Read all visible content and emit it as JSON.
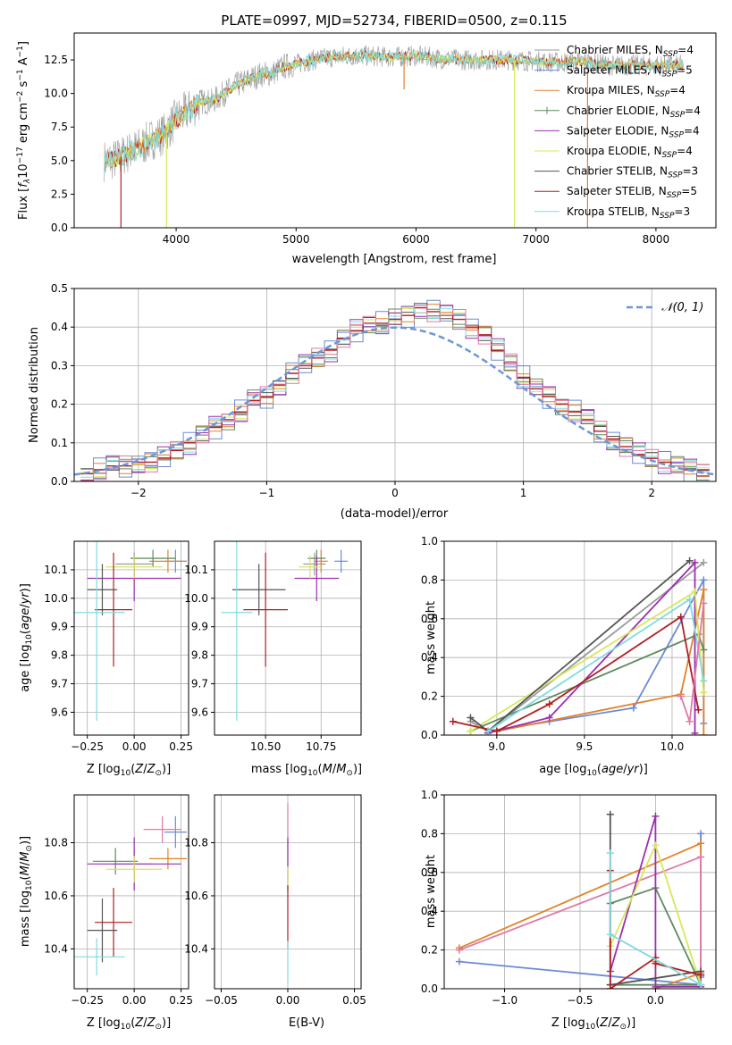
{
  "colors": {
    "Chabrier MILES": "#9b9b9b",
    "Salpeter MILES": "#6b8ad6",
    "Kroupa MILES": "#e0832a",
    "Chabrier ELODIE": "#5f8a5f",
    "Salpeter ELODIE": "#9b2fae",
    "Kroupa ELODIE": "#d7e85a",
    "Chabrier STELIB": "#555555",
    "Salpeter STELIB": "#b01f24",
    "Kroupa STELIB": "#7fdbe0",
    "Salpeter MILES pink": "#e07aa8",
    "normal": "#6b96d8"
  },
  "chart_data": [
    {
      "type": "line",
      "title": "PLATE=0997, MJD=52734, FIBERID=0500, z=0.115",
      "xlabel": "wavelength [Angstrom, rest frame]",
      "ylabel": "Flux [f_λ10^-17 erg cm^-2 s^-1 A^-1]",
      "xlim": [
        3150,
        8500
      ],
      "ylim": [
        0,
        14.5
      ],
      "xticks": [
        4000,
        5000,
        6000,
        7000,
        8000
      ],
      "yticks": [
        0.0,
        2.5,
        5.0,
        7.5,
        10.0,
        12.5
      ],
      "legend_position": "right",
      "legend": [
        "Chabrier MILES, N_SSP=4",
        "Salpeter MILES, N_SSP=5",
        "Kroupa MILES, N_SSP=4",
        "Chabrier ELODIE, N_SSP=4",
        "Salpeter ELODIE, N_SSP=4",
        "Kroupa ELODIE, N_SSP=4",
        "Chabrier STELIB, N_SSP=3",
        "Salpeter STELIB, N_SSP=5",
        "Kroupa STELIB, N_SSP=3"
      ],
      "continuum": {
        "x": [
          3400,
          3500,
          3600,
          3700,
          3800,
          3900,
          4000,
          4100,
          4200,
          4300,
          4400,
          4500,
          4600,
          4700,
          4800,
          4900,
          5000,
          5200,
          5400,
          5600,
          5800,
          6000,
          6200,
          6400,
          6600,
          6800,
          7000,
          7200,
          7400,
          7600,
          7800,
          8000,
          8200
        ],
        "y": [
          5.0,
          5.1,
          5.6,
          6.0,
          6.6,
          7.0,
          8.1,
          8.7,
          9.4,
          9.4,
          10.0,
          10.6,
          11.0,
          11.4,
          11.5,
          12.0,
          12.2,
          12.6,
          12.8,
          12.8,
          12.7,
          12.8,
          12.6,
          12.5,
          12.5,
          12.5,
          12.4,
          12.3,
          12.4,
          12.1,
          12.1,
          12.1,
          12.1
        ]
      },
      "dips": [
        {
          "x": 3540,
          "y": 0,
          "series": "Salpeter STELIB"
        },
        {
          "x": 3920,
          "y": 0,
          "series": "Kroupa ELODIE"
        },
        {
          "x": 5600,
          "y": 12.3,
          "series": "Kroupa STELIB"
        },
        {
          "x": 5900,
          "y": 10.3,
          "series": "Kroupa MILES"
        },
        {
          "x": 6820,
          "y": 0,
          "series": "Kroupa ELODIE"
        },
        {
          "x": 7430,
          "y": 0,
          "series": "Kroupa MILES"
        }
      ],
      "grid": false
    },
    {
      "type": "histogram",
      "xlabel": "(data-model)/error",
      "ylabel": "Normed distribution",
      "xlim": [
        -2.5,
        2.5
      ],
      "ylim": [
        0,
        0.5
      ],
      "xticks": [
        -2,
        -1,
        0,
        1,
        2
      ],
      "yticks": [
        0.0,
        0.1,
        0.2,
        0.3,
        0.4,
        0.5
      ],
      "grid": true,
      "legend": [
        "N(0,1)"
      ],
      "legend_position": "top-right",
      "bin_centers": [
        -2.4,
        -2.3,
        -2.2,
        -2.1,
        -2.0,
        -1.9,
        -1.8,
        -1.7,
        -1.6,
        -1.5,
        -1.4,
        -1.3,
        -1.2,
        -1.1,
        -1.0,
        -0.9,
        -0.8,
        -0.7,
        -0.6,
        -0.5,
        -0.4,
        -0.3,
        -0.2,
        -0.1,
        0.0,
        0.1,
        0.2,
        0.3,
        0.4,
        0.5,
        0.6,
        0.7,
        0.8,
        0.9,
        1.0,
        1.1,
        1.2,
        1.3,
        1.4,
        1.5,
        1.6,
        1.7,
        1.8,
        1.9,
        2.0,
        2.1,
        2.2,
        2.3,
        2.4
      ],
      "values": [
        0.02,
        0.03,
        0.04,
        0.04,
        0.05,
        0.05,
        0.06,
        0.08,
        0.1,
        0.12,
        0.14,
        0.16,
        0.18,
        0.21,
        0.22,
        0.25,
        0.28,
        0.3,
        0.32,
        0.34,
        0.37,
        0.39,
        0.41,
        0.41,
        0.42,
        0.43,
        0.45,
        0.44,
        0.43,
        0.42,
        0.4,
        0.38,
        0.34,
        0.31,
        0.27,
        0.24,
        0.22,
        0.2,
        0.18,
        0.16,
        0.13,
        0.11,
        0.09,
        0.07,
        0.06,
        0.05,
        0.04,
        0.03,
        0.03
      ]
    },
    {
      "type": "scatter",
      "xlabel": "Z [log10(Z/Z⊙)]",
      "ylabel": "age  [log10(age/yr)]",
      "xlim": [
        -0.32,
        0.29
      ],
      "ylim": [
        9.52,
        10.2
      ],
      "xticks": [
        -0.25,
        0.0,
        0.25
      ],
      "yticks": [
        9.6,
        9.7,
        9.8,
        9.9,
        10.0,
        10.1
      ],
      "grid": true,
      "points": [
        {
          "series": "Chabrier MILES",
          "x": 0.0,
          "y": 10.12,
          "xerr": 0.1,
          "yerr": 0.04
        },
        {
          "series": "Salpeter MILES",
          "x": 0.22,
          "y": 10.13,
          "xerr": 0.06,
          "yerr": 0.04
        },
        {
          "series": "Kroupa MILES",
          "x": 0.18,
          "y": 10.13,
          "xerr": 0.1,
          "yerr": 0.04
        },
        {
          "series": "Chabrier ELODIE",
          "x": 0.1,
          "y": 10.14,
          "xerr": 0.12,
          "yerr": 0.03
        },
        {
          "series": "Salpeter ELODIE",
          "x": 0.0,
          "y": 10.07,
          "xerr": 0.25,
          "yerr": 0.08
        },
        {
          "series": "Kroupa ELODIE",
          "x": 0.0,
          "y": 10.11,
          "xerr": 0.15,
          "yerr": 0.04
        },
        {
          "series": "Chabrier STELIB",
          "x": -0.17,
          "y": 10.03,
          "xerr": 0.08,
          "yerr": 0.09
        },
        {
          "series": "Salpeter STELIB",
          "x": -0.11,
          "y": 9.96,
          "xerr": 0.1,
          "yerr": 0.2
        },
        {
          "series": "Kroupa STELIB",
          "x": -0.2,
          "y": 9.95,
          "xerr": 0.15,
          "yerr": 0.38
        }
      ]
    },
    {
      "type": "scatter",
      "xlabel": "mass [log10(M/M⊙)]",
      "ylabel": "",
      "xlim": [
        10.27,
        10.93
      ],
      "ylim": [
        9.52,
        10.2
      ],
      "xticks": [
        10.25,
        10.5,
        10.75
      ],
      "yticks": [
        9.6,
        9.7,
        9.8,
        9.9,
        10.0,
        10.1
      ],
      "grid": true,
      "points": [
        {
          "series": "Chabrier MILES",
          "x": 10.72,
          "y": 10.12,
          "xerr": 0.05,
          "yerr": 0.04
        },
        {
          "series": "Salpeter MILES",
          "x": 10.84,
          "y": 10.13,
          "xerr": 0.03,
          "yerr": 0.04
        },
        {
          "series": "Kroupa MILES",
          "x": 10.75,
          "y": 10.13,
          "xerr": 0.03,
          "yerr": 0.04
        },
        {
          "series": "Chabrier ELODIE",
          "x": 10.73,
          "y": 10.14,
          "xerr": 0.04,
          "yerr": 0.03
        },
        {
          "series": "Salpeter ELODIE",
          "x": 10.73,
          "y": 10.07,
          "xerr": 0.1,
          "yerr": 0.08
        },
        {
          "series": "Kroupa ELODIE",
          "x": 10.7,
          "y": 10.11,
          "xerr": 0.05,
          "yerr": 0.04
        },
        {
          "series": "Chabrier STELIB",
          "x": 10.47,
          "y": 10.03,
          "xerr": 0.12,
          "yerr": 0.09
        },
        {
          "series": "Salpeter STELIB",
          "x": 10.5,
          "y": 9.96,
          "xerr": 0.1,
          "yerr": 0.2
        },
        {
          "series": "Kroupa STELIB",
          "x": 10.37,
          "y": 9.95,
          "xerr": 0.07,
          "yerr": 0.38
        }
      ]
    },
    {
      "type": "line",
      "xlabel": "age  [log10(age/yr)]",
      "ylabel": "mass weight",
      "xlim": [
        8.7,
        10.25
      ],
      "ylim": [
        0,
        1.0
      ],
      "xticks": [
        9.0,
        9.5,
        10.0
      ],
      "yticks": [
        0.0,
        0.2,
        0.4,
        0.6,
        0.8,
        1.0
      ],
      "grid": true,
      "series": [
        {
          "name": "Chabrier MILES",
          "x": [
            8.85,
            8.95,
            10.18
          ],
          "y": [
            0.07,
            0.02,
            0.89
          ]
        },
        {
          "name": "Salpeter MILES",
          "x": [
            10.18,
            10.18,
            9.78,
            9.3,
            8.95
          ],
          "y": [
            0.06,
            0.8,
            0.14,
            0.07,
            0.02
          ]
        },
        {
          "name": "Kroupa MILES",
          "x": [
            9.0,
            10.05,
            10.18,
            10.18
          ],
          "y": [
            0.02,
            0.21,
            0.75,
            0.0
          ]
        },
        {
          "name": "Chabrier ELODIE",
          "x": [
            8.85,
            10.15,
            10.18
          ],
          "y": [
            0.02,
            0.52,
            0.44
          ]
        },
        {
          "name": "Salpeter ELODIE",
          "x": [
            8.95,
            9.3,
            10.13,
            10.13
          ],
          "y": [
            0.01,
            0.09,
            0.89,
            0.01
          ]
        },
        {
          "name": "Kroupa ELODIE",
          "x": [
            8.85,
            10.13,
            10.18
          ],
          "y": [
            0.02,
            0.74,
            0.22
          ]
        },
        {
          "name": "Chabrier STELIB",
          "x": [
            8.85,
            8.95,
            10.1
          ],
          "y": [
            0.09,
            0.02,
            0.9
          ]
        },
        {
          "name": "Salpeter STELIB",
          "x": [
            8.75,
            9.0,
            9.3,
            10.05,
            10.15
          ],
          "y": [
            0.07,
            0.02,
            0.16,
            0.61,
            0.13
          ]
        },
        {
          "name": "Kroupa STELIB",
          "x": [
            8.95,
            10.1,
            10.18
          ],
          "y": [
            0.02,
            0.7,
            0.28
          ]
        },
        {
          "name": "Salpeter MILES pink",
          "x": [
            10.05,
            10.1,
            10.18
          ],
          "y": [
            0.2,
            0.07,
            0.68
          ]
        }
      ]
    },
    {
      "type": "scatter",
      "xlabel": "Z [log10(Z/Z⊙)]",
      "ylabel": "mass [log10(M/M⊙)]",
      "xlim": [
        -0.32,
        0.29
      ],
      "ylim": [
        10.25,
        10.98
      ],
      "xticks": [
        -0.25,
        0.0,
        0.25
      ],
      "yticks": [
        10.4,
        10.6,
        10.8
      ],
      "grid": true,
      "points": [
        {
          "series": "Chabrier MILES",
          "x": 0.0,
          "y": 10.72,
          "xerr": 0.1,
          "yerr": 0.05
        },
        {
          "series": "Salpeter MILES",
          "x": 0.22,
          "y": 10.84,
          "xerr": 0.06,
          "yerr": 0.06
        },
        {
          "series": "Kroupa MILES",
          "x": 0.18,
          "y": 10.74,
          "xerr": 0.1,
          "yerr": 0.04
        },
        {
          "series": "Chabrier ELODIE",
          "x": -0.1,
          "y": 10.73,
          "xerr": 0.12,
          "yerr": 0.05
        },
        {
          "series": "Salpeter ELODIE",
          "x": 0.0,
          "y": 10.72,
          "xerr": 0.25,
          "yerr": 0.1
        },
        {
          "series": "Kroupa ELODIE",
          "x": 0.0,
          "y": 10.7,
          "xerr": 0.15,
          "yerr": 0.05
        },
        {
          "series": "Chabrier STELIB",
          "x": -0.17,
          "y": 10.47,
          "xerr": 0.08,
          "yerr": 0.12
        },
        {
          "series": "Salpeter STELIB",
          "x": -0.11,
          "y": 10.5,
          "xerr": 0.1,
          "yerr": 0.13
        },
        {
          "series": "Kroupa STELIB",
          "x": -0.2,
          "y": 10.37,
          "xerr": 0.15,
          "yerr": 0.07
        },
        {
          "series": "Salpeter MILES pink",
          "x": 0.15,
          "y": 10.85,
          "xerr": 0.1,
          "yerr": 0.05
        }
      ]
    },
    {
      "type": "scatter",
      "xlabel": "E(B-V)",
      "ylabel": "",
      "xlim": [
        -0.055,
        0.055
      ],
      "ylim": [
        10.25,
        10.98
      ],
      "xticks": [
        -0.05,
        0.0,
        0.05
      ],
      "yticks": [
        10.4,
        10.6,
        10.8
      ],
      "grid": true,
      "points": [
        {
          "series": "Salpeter MILES pink",
          "x": 0.0,
          "y": 10.8,
          "xerr": 0.0,
          "yerr": 0.15
        },
        {
          "series": "Salpeter ELODIE",
          "x": 0.0,
          "y": 10.72,
          "xerr": 0.0,
          "yerr": 0.1
        },
        {
          "series": "Kroupa ELODIE",
          "x": 0.0,
          "y": 10.66,
          "xerr": 0.0,
          "yerr": 0.05
        },
        {
          "series": "Salpeter STELIB",
          "x": 0.0,
          "y": 10.52,
          "xerr": 0.0,
          "yerr": 0.12
        },
        {
          "series": "Kroupa STELIB",
          "x": 0.0,
          "y": 10.35,
          "xerr": 0.0,
          "yerr": 0.08
        }
      ]
    },
    {
      "type": "line",
      "xlabel": "Z [log10(Z/Z⊙)]",
      "ylabel": "mass weight",
      "xlim": [
        -1.4,
        0.4
      ],
      "ylim": [
        0,
        1.0
      ],
      "xticks": [
        -1.0,
        -0.5,
        0.0
      ],
      "yticks": [
        0.0,
        0.2,
        0.4,
        0.6,
        0.8,
        1.0
      ],
      "grid": true,
      "series": [
        {
          "name": "Salpeter MILES",
          "x": [
            -1.3,
            0.3,
            0.3,
            0.3
          ],
          "y": [
            0.14,
            0.02,
            0.8,
            0.06
          ]
        },
        {
          "name": "Kroupa MILES",
          "x": [
            -1.3,
            0.3,
            0.3,
            0.0,
            0.0
          ],
          "y": [
            0.21,
            0.75,
            0.08,
            0.0,
            0.14
          ]
        },
        {
          "name": "Salpeter MILES pink",
          "x": [
            -1.3,
            0.3,
            0.3
          ],
          "y": [
            0.2,
            0.68,
            0.07
          ]
        },
        {
          "name": "Chabrier ELODIE",
          "x": [
            -0.3,
            0.0,
            0.3,
            -0.3
          ],
          "y": [
            0.44,
            0.52,
            0.02,
            0.02
          ]
        },
        {
          "name": "Salpeter ELODIE",
          "x": [
            -0.3,
            0.0,
            0.0,
            0.3
          ],
          "y": [
            0.09,
            0.89,
            0.01,
            0.01
          ]
        },
        {
          "name": "Kroupa ELODIE",
          "x": [
            -0.3,
            -0.3,
            0.0,
            0.3
          ],
          "y": [
            0.28,
            0.22,
            0.74,
            0.02
          ]
        },
        {
          "name": "Chabrier STELIB",
          "x": [
            -0.3,
            -0.3,
            0.3
          ],
          "y": [
            0.9,
            0.02,
            0.09
          ]
        },
        {
          "name": "Salpeter STELIB",
          "x": [
            -0.3,
            -0.3,
            0.0,
            0.0,
            0.3
          ],
          "y": [
            0.61,
            0.0,
            0.16,
            0.13,
            0.07
          ]
        },
        {
          "name": "Kroupa STELIB",
          "x": [
            -0.3,
            -0.3,
            0.3
          ],
          "y": [
            0.7,
            0.28,
            0.02
          ]
        }
      ]
    }
  ]
}
